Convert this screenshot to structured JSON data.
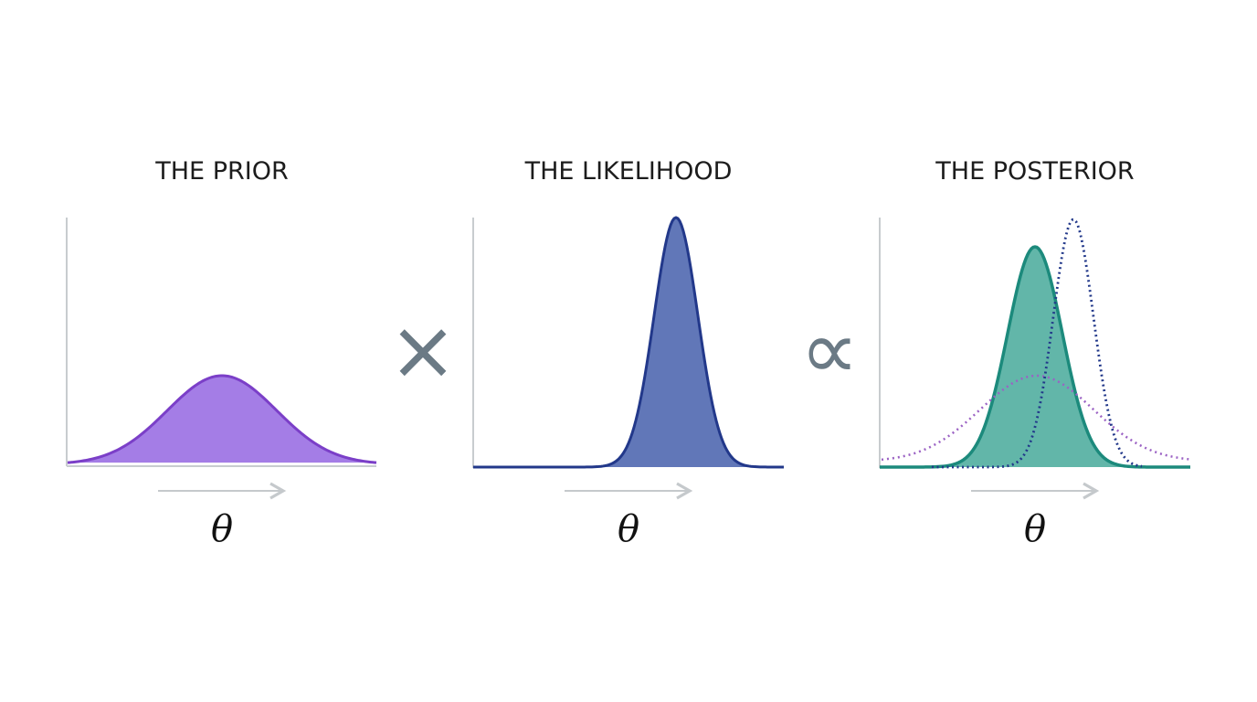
{
  "panels": [
    {
      "title": "THE PRIOR",
      "axis_label": "θ"
    },
    {
      "title": "THE LIKELIHOOD",
      "axis_label": "θ"
    },
    {
      "title": "THE POSTERIOR",
      "axis_label": "θ"
    }
  ],
  "operators": [
    "×",
    "∝"
  ]
}
